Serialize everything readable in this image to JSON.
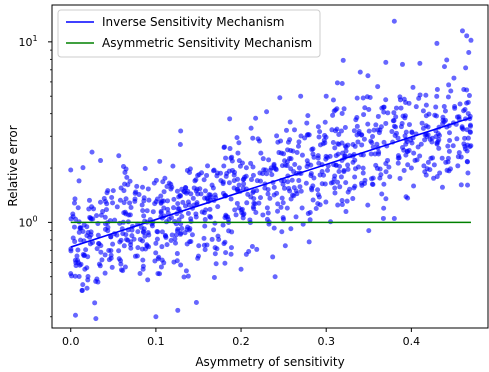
{
  "chart_data": {
    "type": "scatter",
    "xlabel": "Asymmetry of sensitivity",
    "ylabel": "Relative error",
    "xlim": [
      -0.022,
      0.49
    ],
    "ylim": [
      0.26,
      16.0
    ],
    "yscale": "log",
    "xticks": [
      0.0,
      0.1,
      0.2,
      0.3,
      0.4
    ],
    "xtick_labels": [
      "0.0",
      "0.1",
      "0.2",
      "0.3",
      "0.4"
    ],
    "yticks": [
      1,
      10
    ],
    "ytick_labels": [
      "10^0",
      "10^1"
    ],
    "ytick_base": "10",
    "ytick_exponents": [
      "0",
      "1"
    ],
    "grid": false,
    "legend_position": "upper-left",
    "series": [
      {
        "name": "Inverse Sensitivity Mechanism",
        "kind": "line",
        "color": "#0000ff",
        "x": [
          0.0,
          0.47
        ],
        "y": [
          0.73,
          3.8
        ]
      },
      {
        "name": "Asymmetric Sensitivity Mechanism",
        "kind": "line",
        "color": "#008000",
        "x": [
          0.0,
          0.47
        ],
        "y": [
          1.0,
          1.0
        ]
      },
      {
        "kind": "scatter",
        "color": "#0000ff",
        "point_count": 1000,
        "x_range": [
          0.0,
          0.47
        ],
        "trend": "log(y) rises linearly with x, from about 0.73 at x=0 to about 3.8 at x=0.47",
        "spread": "approx. factor 1.5 (1 sigma) around the trend",
        "sample_points": [
          [
            0.0,
            0.52
          ],
          [
            0.0,
            1.95
          ],
          [
            0.005,
            1.35
          ],
          [
            0.01,
            0.88
          ],
          [
            0.02,
            0.48
          ],
          [
            0.025,
            2.45
          ],
          [
            0.035,
            2.2
          ],
          [
            0.05,
            1.5
          ],
          [
            0.07,
            1.1
          ],
          [
            0.085,
            0.55
          ],
          [
            0.1,
            0.3
          ],
          [
            0.12,
            2.05
          ],
          [
            0.15,
            0.65
          ],
          [
            0.16,
            0.75
          ],
          [
            0.18,
            2.6
          ],
          [
            0.2,
            0.55
          ],
          [
            0.22,
            2.9
          ],
          [
            0.23,
            4.1
          ],
          [
            0.24,
            0.5
          ],
          [
            0.27,
            5.0
          ],
          [
            0.28,
            0.78
          ],
          [
            0.3,
            5.0
          ],
          [
            0.32,
            7.9
          ],
          [
            0.34,
            6.8
          ],
          [
            0.35,
            0.9
          ],
          [
            0.37,
            7.7
          ],
          [
            0.38,
            13.0
          ],
          [
            0.38,
            1.05
          ],
          [
            0.4,
            2.0
          ],
          [
            0.41,
            7.6
          ],
          [
            0.42,
            2.15
          ],
          [
            0.43,
            9.8
          ],
          [
            0.45,
            6.3
          ],
          [
            0.46,
            11.5
          ],
          [
            0.465,
            10.8
          ],
          [
            0.47,
            10.2
          ]
        ]
      }
    ]
  }
}
